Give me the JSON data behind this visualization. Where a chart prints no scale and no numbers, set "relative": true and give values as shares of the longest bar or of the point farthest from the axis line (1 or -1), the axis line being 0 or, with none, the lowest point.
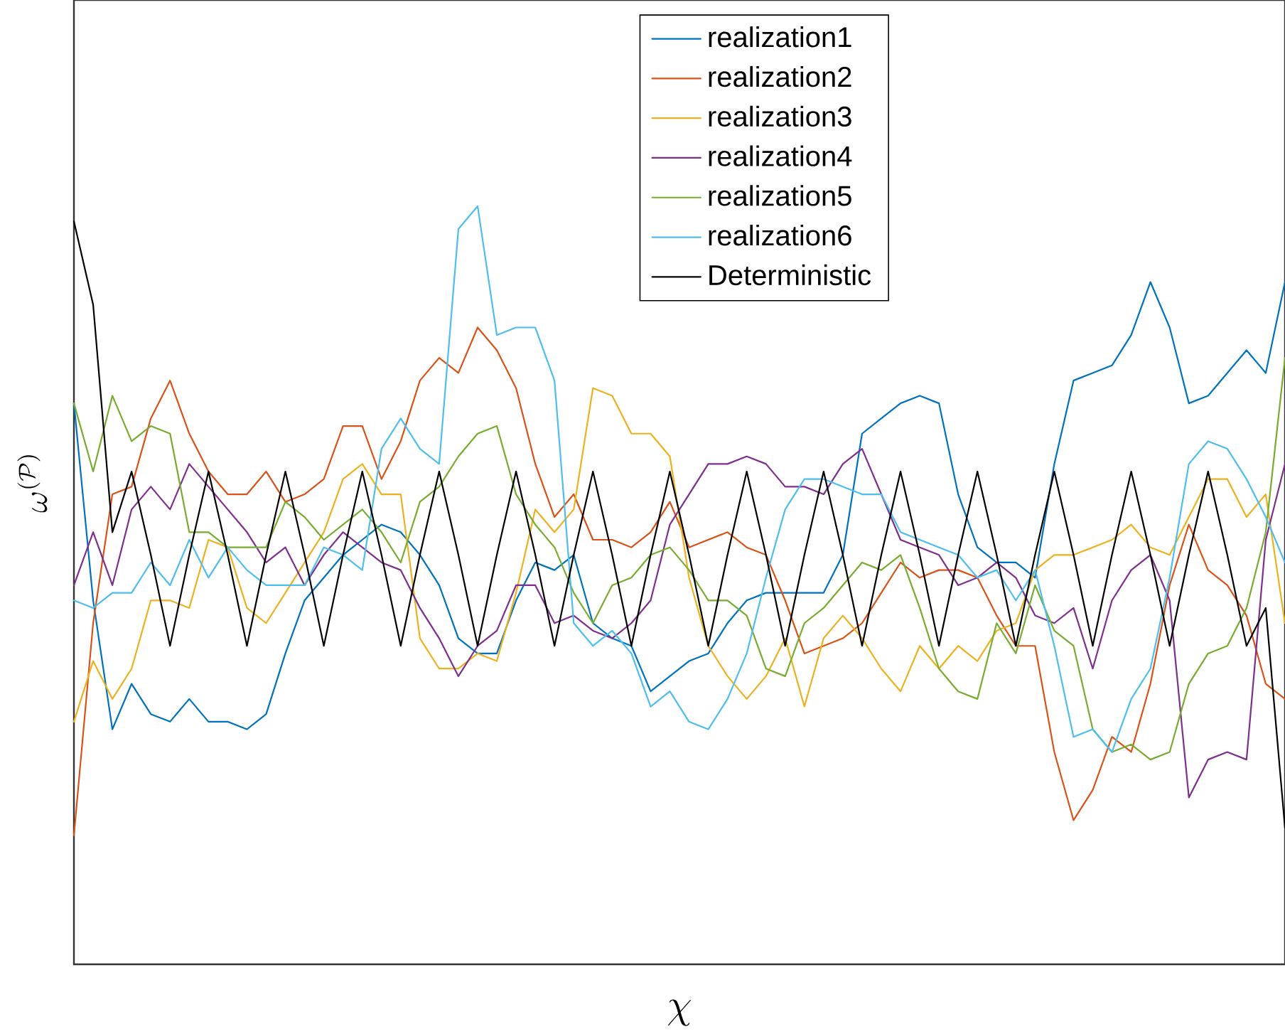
{
  "chart_data": {
    "type": "line",
    "relative": true,
    "xlabel": "\\chi",
    "ylabel": "\\omega^{(\\mathcal{P})}",
    "legend": "top",
    "categories": [
      null,
      null,
      null,
      null,
      null,
      null,
      null,
      null,
      null,
      null,
      null,
      null,
      null,
      null,
      null,
      null,
      null,
      null,
      null,
      null,
      null,
      null,
      null,
      null,
      null,
      null,
      null,
      null,
      null,
      null,
      null,
      null,
      null,
      null,
      null,
      null,
      null,
      null,
      null,
      null,
      null,
      null,
      null,
      null,
      null,
      null,
      null,
      null,
      null,
      null,
      null,
      null,
      null,
      null,
      null,
      null,
      null,
      null,
      null,
      null,
      null,
      null,
      null,
      null
    ],
    "series": [
      {
        "name": "realization1",
        "color": "#0072bd",
        "values": [
          0.74,
          0.48,
          0.31,
          0.37,
          0.33,
          0.32,
          0.35,
          0.32,
          0.32,
          0.31,
          0.33,
          0.41,
          0.48,
          0.51,
          0.54,
          0.56,
          0.58,
          0.57,
          0.54,
          0.5,
          0.43,
          0.41,
          0.41,
          0.48,
          0.53,
          0.52,
          0.54,
          0.45,
          0.43,
          0.42,
          0.36,
          0.38,
          0.4,
          0.41,
          0.45,
          0.48,
          0.49,
          0.49,
          0.49,
          0.49,
          0.54,
          0.7,
          0.72,
          0.74,
          0.75,
          0.74,
          0.62,
          0.55,
          0.53,
          0.53,
          0.51,
          0.66,
          0.77,
          0.78,
          0.79,
          0.83,
          0.9,
          0.84,
          0.74,
          0.75,
          0.78,
          0.81,
          0.78,
          0.9
        ]
      },
      {
        "name": "realization2",
        "color": "#d95319",
        "values": [
          0.17,
          0.45,
          0.62,
          0.63,
          0.72,
          0.77,
          0.7,
          0.65,
          0.62,
          0.62,
          0.65,
          0.61,
          0.62,
          0.64,
          0.71,
          0.71,
          0.64,
          0.69,
          0.77,
          0.8,
          0.78,
          0.84,
          0.81,
          0.76,
          0.66,
          0.59,
          0.62,
          0.56,
          0.56,
          0.55,
          0.57,
          0.61,
          0.55,
          0.56,
          0.57,
          0.55,
          0.54,
          0.48,
          0.41,
          0.42,
          0.43,
          0.45,
          0.49,
          0.53,
          0.51,
          0.52,
          0.52,
          0.51,
          0.46,
          0.42,
          0.42,
          0.28,
          0.19,
          0.23,
          0.3,
          0.28,
          0.37,
          0.5,
          0.58,
          0.52,
          0.5,
          0.46,
          0.37,
          0.35
        ]
      },
      {
        "name": "realization3",
        "color": "#edb120",
        "values": [
          0.32,
          0.4,
          0.35,
          0.39,
          0.48,
          0.48,
          0.47,
          0.56,
          0.55,
          0.47,
          0.45,
          0.49,
          0.53,
          0.57,
          0.64,
          0.66,
          0.62,
          0.62,
          0.43,
          0.39,
          0.39,
          0.41,
          0.4,
          0.49,
          0.6,
          0.57,
          0.6,
          0.76,
          0.75,
          0.7,
          0.7,
          0.67,
          0.51,
          0.42,
          0.38,
          0.35,
          0.38,
          0.43,
          0.34,
          0.43,
          0.46,
          0.43,
          0.39,
          0.36,
          0.42,
          0.39,
          0.42,
          0.4,
          0.44,
          0.45,
          0.52,
          0.54,
          0.54,
          0.55,
          0.56,
          0.58,
          0.55,
          0.54,
          0.59,
          0.64,
          0.64,
          0.59,
          0.62,
          0.45
        ]
      },
      {
        "name": "realization4",
        "color": "#7e2f8e",
        "values": [
          0.5,
          0.57,
          0.5,
          0.6,
          0.63,
          0.6,
          0.66,
          0.63,
          0.6,
          0.57,
          0.53,
          0.55,
          0.5,
          0.54,
          0.57,
          0.55,
          0.53,
          0.52,
          0.47,
          0.43,
          0.38,
          0.42,
          0.44,
          0.5,
          0.5,
          0.45,
          0.46,
          0.44,
          0.43,
          0.45,
          0.48,
          0.58,
          0.62,
          0.66,
          0.66,
          0.67,
          0.66,
          0.63,
          0.63,
          0.62,
          0.66,
          0.68,
          0.62,
          0.56,
          0.55,
          0.54,
          0.5,
          0.51,
          0.53,
          0.51,
          0.46,
          0.45,
          0.47,
          0.39,
          0.48,
          0.52,
          0.54,
          0.48,
          0.22,
          0.27,
          0.28,
          0.27,
          0.56,
          0.66
        ]
      },
      {
        "name": "realization5",
        "color": "#77ac30",
        "values": [
          0.74,
          0.65,
          0.75,
          0.69,
          0.71,
          0.7,
          0.57,
          0.57,
          0.55,
          0.55,
          0.55,
          0.61,
          0.59,
          0.56,
          0.58,
          0.6,
          0.57,
          0.53,
          0.61,
          0.63,
          0.67,
          0.7,
          0.71,
          0.62,
          0.58,
          0.55,
          0.49,
          0.45,
          0.5,
          0.51,
          0.54,
          0.55,
          0.52,
          0.48,
          0.48,
          0.46,
          0.39,
          0.38,
          0.45,
          0.47,
          0.5,
          0.53,
          0.52,
          0.54,
          0.47,
          0.39,
          0.36,
          0.35,
          0.45,
          0.41,
          0.5,
          0.44,
          0.42,
          0.31,
          0.28,
          0.29,
          0.27,
          0.28,
          0.37,
          0.41,
          0.42,
          0.47,
          0.57,
          0.8
        ]
      },
      {
        "name": "realization6",
        "color": "#4dbeee",
        "values": [
          0.48,
          0.47,
          0.49,
          0.49,
          0.53,
          0.5,
          0.56,
          0.51,
          0.55,
          0.52,
          0.5,
          0.5,
          0.5,
          0.55,
          0.54,
          0.52,
          0.68,
          0.72,
          0.68,
          0.66,
          0.97,
          1,
          0.83,
          0.84,
          0.84,
          0.77,
          0.45,
          0.42,
          0.44,
          0.41,
          0.34,
          0.36,
          0.32,
          0.31,
          0.35,
          0.41,
          0.51,
          0.6,
          0.64,
          0.64,
          0.63,
          0.62,
          0.62,
          0.57,
          0.56,
          0.55,
          0.54,
          0.51,
          0.52,
          0.48,
          0.52,
          0.42,
          0.3,
          0.31,
          0.28,
          0.35,
          0.39,
          0.51,
          0.66,
          0.69,
          0.68,
          0.64,
          0.59,
          0.53
        ]
      },
      {
        "name": "Deterministic",
        "color": "#000000",
        "values": [
          0.98,
          0.87,
          0.57,
          0.65,
          0.54,
          0.42,
          0.54,
          0.65,
          0.54,
          0.42,
          0.54,
          0.65,
          0.54,
          0.42,
          0.54,
          0.65,
          0.54,
          0.42,
          0.54,
          0.65,
          0.54,
          0.42,
          0.54,
          0.65,
          0.54,
          0.42,
          0.54,
          0.65,
          0.54,
          0.42,
          0.54,
          0.65,
          0.54,
          0.42,
          0.54,
          0.65,
          0.54,
          0.42,
          0.54,
          0.65,
          0.54,
          0.42,
          0.54,
          0.65,
          0.54,
          0.42,
          0.54,
          0.65,
          0.54,
          0.42,
          0.54,
          0.65,
          0.54,
          0.42,
          0.54,
          0.65,
          0.54,
          0.42,
          0.54,
          0.65,
          0.54,
          0.42,
          0.47,
          0.18
        ]
      }
    ]
  }
}
